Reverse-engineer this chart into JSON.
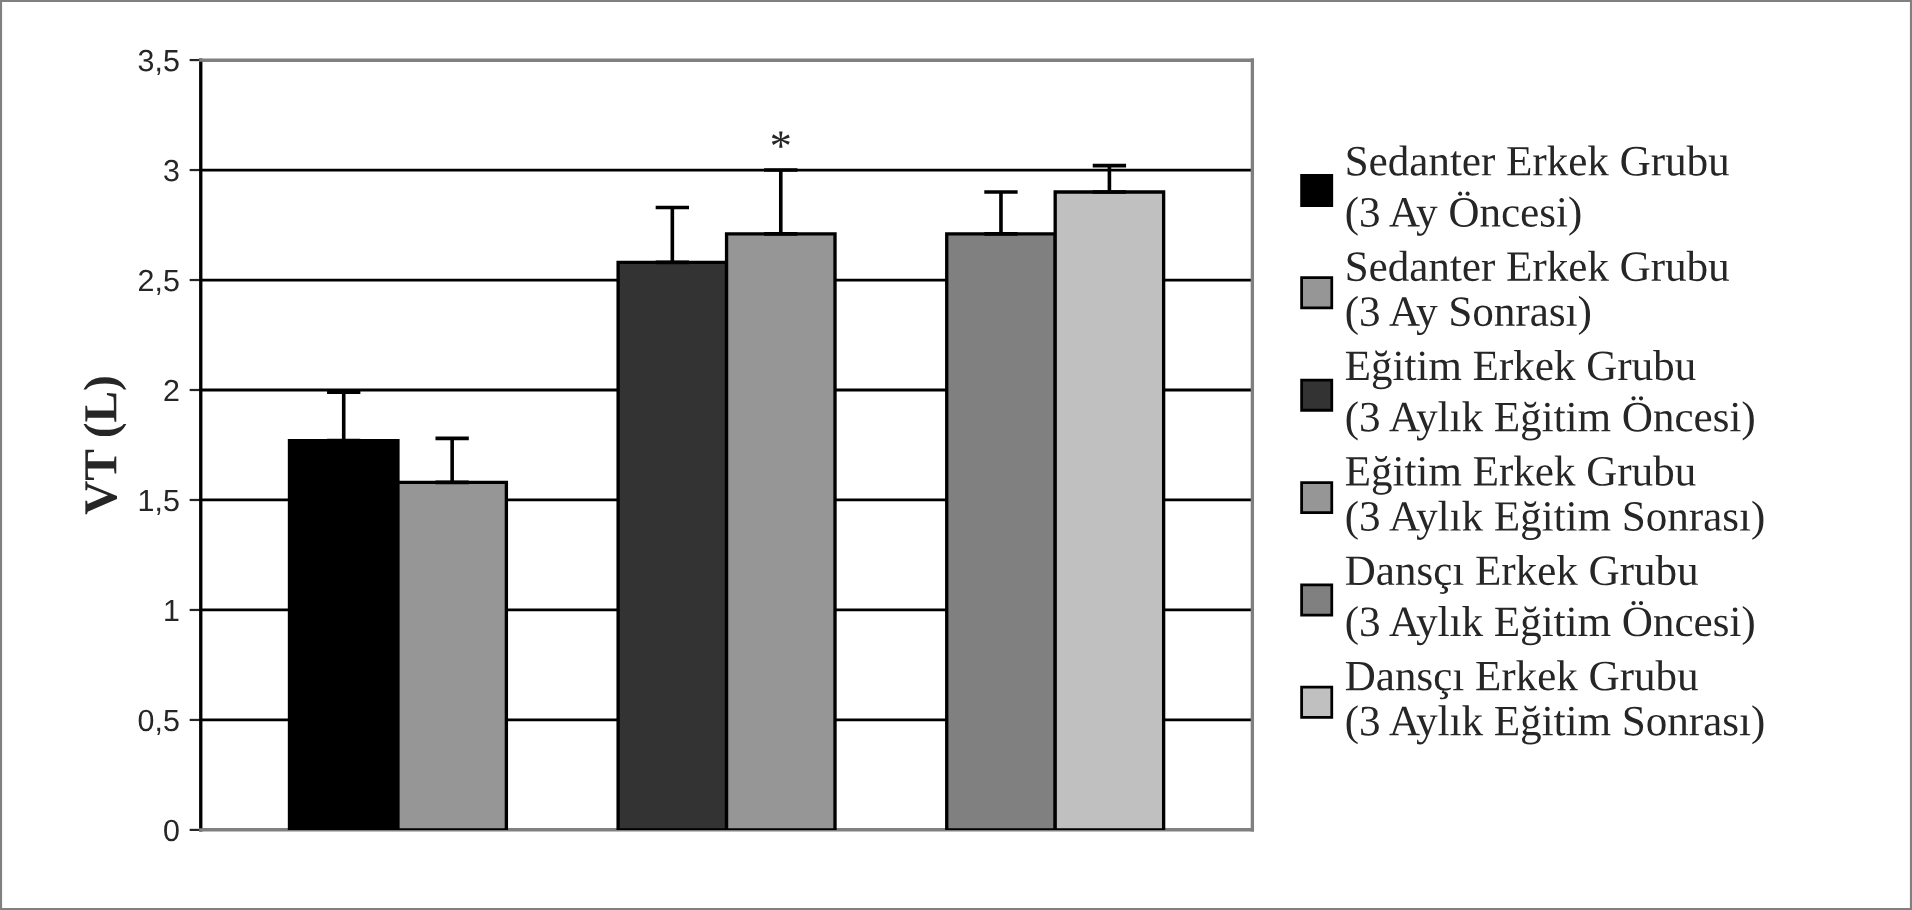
{
  "chart_data": {
    "type": "bar",
    "ylabel": "VT (L)",
    "categories": [
      null,
      null,
      null
    ],
    "series": [
      {
        "name": "Sedanter Erkek Grubu\n(3 Ay Öncesi)",
        "color": "#000000",
        "values": [
          1.77,
          null,
          null
        ],
        "errors": [
          [
            1.77,
            1.99
          ],
          null,
          null
        ]
      },
      {
        "name": "Sedanter Erkek Grubu\n(3 Ay Sonrası)",
        "color": "#969696",
        "values": [
          1.58,
          null,
          null
        ],
        "errors": [
          [
            1.58,
            1.78
          ],
          null,
          null
        ]
      },
      {
        "name": "Eğitim Erkek Grubu\n(3 Aylık Eğitim Öncesi)",
        "color": "#333333",
        "values": [
          null,
          2.58,
          null
        ],
        "errors": [
          null,
          [
            2.58,
            2.83
          ],
          null
        ]
      },
      {
        "name": "Eğitim Erkek Grubu\n(3 Aylık Eğitim Sonrası)",
        "color": "#969696",
        "values": [
          null,
          2.71,
          null
        ],
        "errors": [
          null,
          [
            2.71,
            3.0
          ],
          null
        ],
        "value_labels": [
          null,
          "*",
          null
        ]
      },
      {
        "name": "Dansçı Erkek Grubu\n(3 Aylık Eğitim Öncesi)",
        "color": "#808080",
        "values": [
          null,
          null,
          2.71
        ],
        "errors": [
          null,
          null,
          [
            2.71,
            2.9
          ]
        ]
      },
      {
        "name": "Dansçı Erkek Grubu\n(3 Aylık Eğitim Sonrası)",
        "color": "#c0c0c0",
        "values": [
          null,
          null,
          2.9
        ],
        "errors": [
          null,
          null,
          [
            2.9,
            3.02
          ]
        ]
      }
    ],
    "ylim": [
      0,
      3.5
    ],
    "yticks": [
      0,
      {
        "value": 0.5,
        "label": "0,5"
      },
      1,
      {
        "value": 1.5,
        "label": "1,5"
      },
      2,
      {
        "value": 2.5,
        "label": "2,5"
      },
      3,
      {
        "value": 3.5,
        "label": "3,5"
      }
    ],
    "grid": "y",
    "legend": "right"
  }
}
